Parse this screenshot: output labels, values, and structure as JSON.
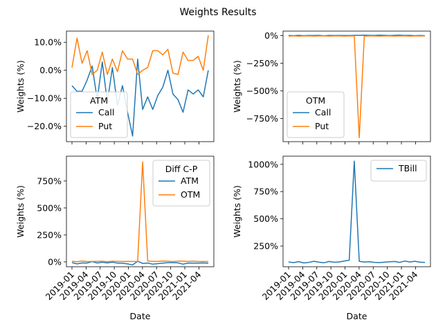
{
  "figure": {
    "suptitle": "Weights Results"
  },
  "chart_data": [
    {
      "type": "line",
      "id": "atm",
      "position": "top-left",
      "xlabel": "",
      "ylabel": "Weights (%)",
      "ylim": [
        -25.5,
        14
      ],
      "yticks": [
        -20,
        -10,
        0,
        10
      ],
      "ytick_labels": [
        "−20.0%",
        "−10.0%",
        "0.0%",
        "10.0%"
      ],
      "legend": {
        "title": "ATM",
        "placement": "lower-left"
      },
      "series": [
        {
          "name": "Call",
          "color": "#1f77b4",
          "values": [
            -5.5,
            -7.5,
            -7.5,
            -3.5,
            1.5,
            -10.5,
            3.0,
            -11.5,
            1.0,
            -12.5,
            -5.5,
            -15.0,
            -23.5,
            4.0,
            -14.0,
            -9.5,
            -14.0,
            -9.0,
            -6.0,
            0.0,
            -8.5,
            -10.5,
            -15.0,
            -7.0,
            -8.5,
            -7.0,
            -9.5,
            0.0
          ]
        },
        {
          "name": "Put",
          "color": "#ff7f0e",
          "values": [
            1.0,
            11.5,
            2.5,
            7.0,
            -1.5,
            0.0,
            6.5,
            -1.5,
            4.0,
            -0.5,
            7.0,
            4.0,
            4.0,
            -1.5,
            0.0,
            1.0,
            7.0,
            7.0,
            5.5,
            7.5,
            -1.0,
            -1.5,
            6.5,
            3.5,
            3.5,
            5.0,
            0.0,
            12.5
          ]
        }
      ]
    },
    {
      "type": "line",
      "id": "otm",
      "position": "top-right",
      "xlabel": "",
      "ylabel": "Weights (%)",
      "ylim": [
        -960,
        40
      ],
      "yticks": [
        -750,
        -500,
        -250,
        0
      ],
      "ytick_labels": [
        "−750%",
        "−500%",
        "−250%",
        "0%"
      ],
      "legend": {
        "title": "OTM",
        "placement": "lower-left"
      },
      "series": [
        {
          "name": "Call",
          "color": "#1f77b4",
          "values": [
            1,
            -1,
            2,
            -1,
            1,
            0,
            2,
            -2,
            1,
            0,
            1,
            0,
            0,
            2,
            2,
            3,
            2,
            1,
            3,
            2,
            0,
            2,
            3,
            1,
            2,
            -1,
            1,
            -1
          ]
        },
        {
          "name": "Put",
          "color": "#ff7f0e",
          "values": [
            -5,
            -3,
            -6,
            -4,
            -3,
            -5,
            -4,
            -3,
            -5,
            -4,
            -3,
            -5,
            -4,
            -3,
            -925,
            -5,
            -3,
            -4,
            -5,
            -4,
            -3,
            -5,
            -4,
            -3,
            -5,
            -4,
            -3,
            -4
          ]
        }
      ]
    },
    {
      "type": "line",
      "id": "diff",
      "position": "bottom-left",
      "xlabel": "Date",
      "ylabel": "Weights (%)",
      "ylim": [
        -45,
        980
      ],
      "yticks": [
        0,
        250,
        500,
        750
      ],
      "ytick_labels": [
        "0%",
        "250%",
        "500%",
        "750%"
      ],
      "legend": {
        "title": "Diff C-P",
        "placement": "upper-right"
      },
      "series": [
        {
          "name": "ATM",
          "color": "#1f77b4",
          "values": [
            -6.5,
            -19,
            -10,
            -10.5,
            3,
            -10.5,
            -3.5,
            -10,
            -3,
            -12,
            -12.5,
            -19,
            -27.5,
            5.5,
            -14,
            -10.5,
            -21,
            -16,
            -11.5,
            -7.5,
            -7.5,
            -9,
            -21.5,
            -10.5,
            -12,
            -12,
            -9.5,
            -12.5
          ]
        },
        {
          "name": "OTM",
          "color": "#ff7f0e",
          "values": [
            6,
            2,
            8,
            3,
            4,
            5,
            6,
            1,
            6,
            4,
            4,
            5,
            4,
            5,
            927,
            8,
            5,
            5,
            8,
            6,
            3,
            7,
            7,
            4,
            7,
            3,
            4,
            3
          ]
        }
      ],
      "xticks": [
        "2019-01",
        "2019-04",
        "2019-07",
        "2019-10",
        "2020-01",
        "2020-04",
        "2020-07",
        "2020-10",
        "2021-01",
        "2021-04"
      ]
    },
    {
      "type": "line",
      "id": "tbill",
      "position": "bottom-right",
      "xlabel": "Date",
      "ylabel": "Weights (%)",
      "ylim": [
        60,
        1075
      ],
      "yticks": [
        250,
        500,
        750,
        1000
      ],
      "ytick_labels": [
        "250%",
        "500%",
        "750%",
        "1000%"
      ],
      "legend": {
        "title": "",
        "placement": "upper-right"
      },
      "series": [
        {
          "name": "TBill",
          "color": "#1f77b4",
          "values": [
            104,
            98,
            107,
            95,
            100,
            110,
            102,
            96,
            108,
            101,
            104,
            112,
            120,
            1030,
            110,
            103,
            106,
            100,
            98,
            102,
            105,
            108,
            100,
            112,
            104,
            110,
            102,
            100
          ]
        }
      ],
      "xticks": [
        "2019-01",
        "2019-04",
        "2019-07",
        "2019-10",
        "2020-01",
        "2020-04",
        "2020-07",
        "2020-10",
        "2021-01",
        "2021-04"
      ]
    }
  ]
}
